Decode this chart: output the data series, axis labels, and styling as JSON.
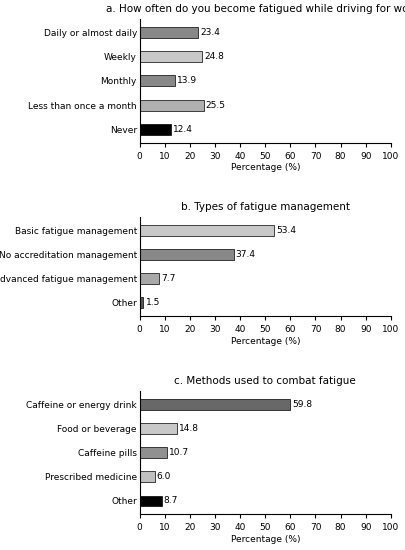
{
  "chart_a": {
    "title": "a. How often do you become fatigued while driving for work?",
    "categories": [
      "Daily or almost daily",
      "Weekly",
      "Monthly",
      "Less than once a month",
      "Never"
    ],
    "values": [
      23.4,
      24.8,
      13.9,
      25.5,
      12.4
    ],
    "colors": [
      "#888888",
      "#c8c8c8",
      "#888888",
      "#b0b0b0",
      "#000000"
    ],
    "xlabel": "Percentage (%)"
  },
  "chart_b": {
    "title": "b. Types of fatigue management",
    "categories": [
      "Basic fatigue management",
      "No accreditation management",
      "Advanced fatigue management",
      "Other"
    ],
    "values": [
      53.4,
      37.4,
      7.7,
      1.5
    ],
    "colors": [
      "#c8c8c8",
      "#888888",
      "#a8a8a8",
      "#585858"
    ],
    "xlabel": "Percentage (%)"
  },
  "chart_c": {
    "title": "c. Methods used to combat fatigue",
    "categories": [
      "Caffeine or energy drink",
      "Food or beverage",
      "Caffeine pills",
      "Prescribed medicine",
      "Other"
    ],
    "values": [
      59.8,
      14.8,
      10.7,
      6.0,
      8.7
    ],
    "colors": [
      "#686868",
      "#c8c8c8",
      "#909090",
      "#c0c0c0",
      "#000000"
    ],
    "xlabel": "Percentage (%)"
  },
  "xlim": [
    0,
    100
  ],
  "xticks": [
    0,
    10,
    20,
    30,
    40,
    50,
    60,
    70,
    80,
    90,
    100
  ],
  "bar_height": 0.45,
  "label_fontsize": 6.5,
  "title_fontsize": 7.5,
  "tick_fontsize": 6.5,
  "value_fontsize": 6.5
}
